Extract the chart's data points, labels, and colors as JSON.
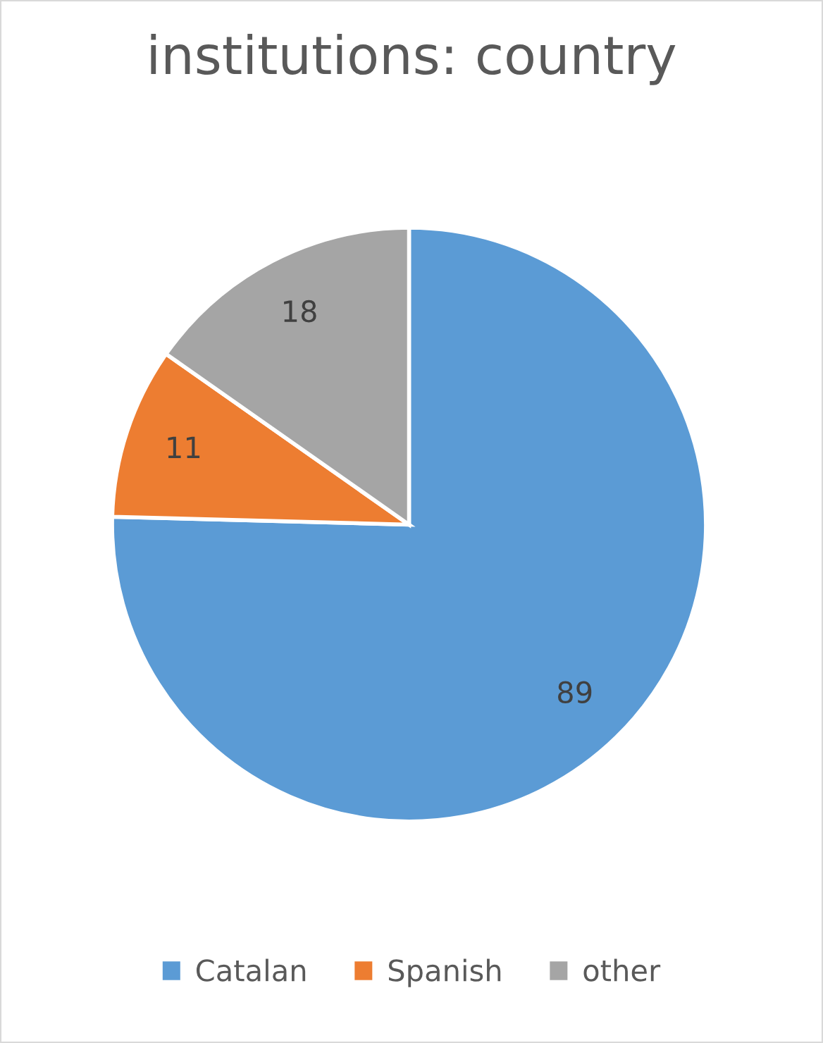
{
  "chart_data": {
    "type": "pie",
    "title": "institutions: country",
    "categories": [
      "Catalan",
      "Spanish",
      "other"
    ],
    "values": [
      89,
      11,
      18
    ],
    "colors": [
      "#5b9bd5",
      "#ed7d31",
      "#a5a5a5"
    ],
    "data_labels": true,
    "legend": "bottom"
  }
}
